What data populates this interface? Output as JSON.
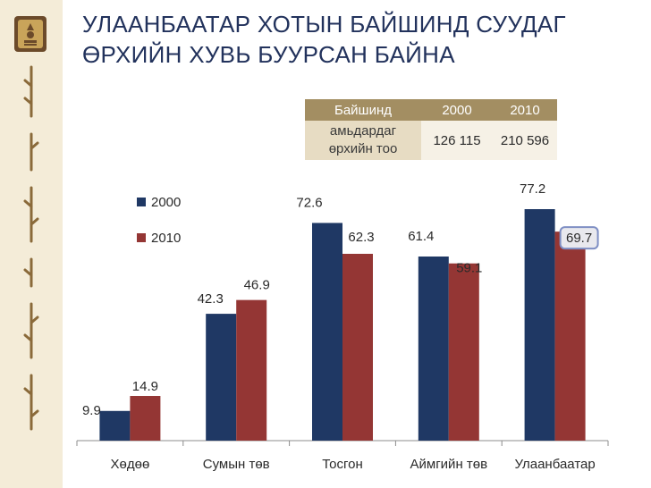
{
  "title": {
    "line1": "УЛААНБААТАР ХОТЫН БАЙШИНД СУУДАГ",
    "line2": "ӨРХИЙН ХУВЬ БУУРСАН БАЙНА"
  },
  "info_table": {
    "label_line1": "Байшинд",
    "label_line2": "амьдардаг",
    "label_line3": "өрхийн тоо",
    "col1_header": "2000",
    "col2_header": "2010",
    "col1_value": "126 115",
    "col2_value": "210 596"
  },
  "colors": {
    "series_2000": "#1f3864",
    "series_2010": "#943634",
    "highlight": "#7f8fc4"
  },
  "chart_data": {
    "type": "bar",
    "categories": [
      "Хөдөө",
      "Сумын төв",
      "Тосгон",
      "Аймгийн төв",
      "Улаанбаатар"
    ],
    "series": [
      {
        "name": "2000",
        "values": [
          9.9,
          42.3,
          72.6,
          61.4,
          77.2
        ]
      },
      {
        "name": "2010",
        "values": [
          14.9,
          46.9,
          62.3,
          59.1,
          69.7
        ]
      }
    ],
    "value_labels": {
      "2000": [
        "9.9",
        "42.3",
        "72.6",
        "61.4",
        "77.2"
      ],
      "2010": [
        "14.9",
        "46.9",
        "62.3",
        "59.1",
        "69.7"
      ]
    },
    "highlighted": {
      "series": "2010",
      "category": "Улаанбаатар"
    },
    "ylim": [
      0,
      85
    ],
    "legend_position": "top-left",
    "grid": false
  }
}
